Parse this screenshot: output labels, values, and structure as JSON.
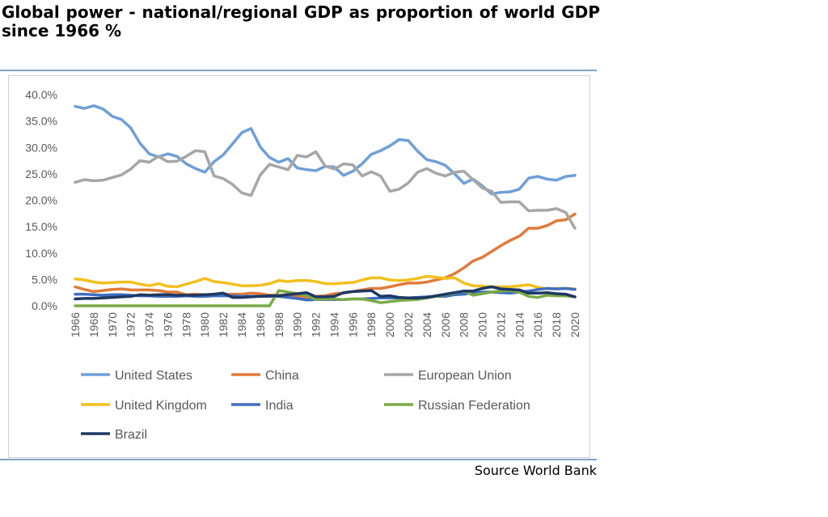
{
  "page": {
    "title": "Global power - national/regional GDP as proportion of world GDP since 1966 %",
    "source": "Source World Bank"
  },
  "chart_data": {
    "type": "line",
    "x": [
      1966,
      1967,
      1968,
      1969,
      1970,
      1971,
      1972,
      1973,
      1974,
      1975,
      1976,
      1977,
      1978,
      1979,
      1980,
      1981,
      1982,
      1983,
      1984,
      1985,
      1986,
      1987,
      1988,
      1989,
      1990,
      1991,
      1992,
      1993,
      1994,
      1995,
      1996,
      1997,
      1998,
      1999,
      2000,
      2001,
      2002,
      2003,
      2004,
      2005,
      2006,
      2007,
      2008,
      2009,
      2010,
      2011,
      2012,
      2013,
      2014,
      2015,
      2016,
      2017,
      2018,
      2019,
      2020
    ],
    "x_tick_labels": [
      "1966",
      "1968",
      "1970",
      "1972",
      "1974",
      "1976",
      "1978",
      "1980",
      "1982",
      "1984",
      "1986",
      "1988",
      "1990",
      "1992",
      "1994",
      "1996",
      "1998",
      "2000",
      "2002",
      "2004",
      "2006",
      "2008",
      "2010",
      "2012",
      "2014",
      "2016",
      "2018",
      "2020"
    ],
    "y_tick_labels": [
      "0.0%",
      "5.0%",
      "10.0%",
      "15.0%",
      "20.0%",
      "25.0%",
      "30.0%",
      "35.0%",
      "40.0%"
    ],
    "ylim": [
      0,
      40
    ],
    "grid": false,
    "legend_position": "bottom",
    "series": [
      {
        "name": "United States",
        "color": "#6f9fd8",
        "values": [
          37.8,
          37.4,
          37.9,
          37.3,
          35.9,
          35.3,
          33.7,
          30.8,
          28.8,
          28.2,
          28.8,
          28.3,
          26.9,
          26.0,
          25.3,
          27.3,
          28.6,
          30.7,
          32.8,
          33.6,
          30.1,
          28.1,
          27.2,
          27.9,
          26.1,
          25.8,
          25.6,
          26.4,
          26.3,
          24.7,
          25.5,
          26.9,
          28.7,
          29.4,
          30.3,
          31.5,
          31.3,
          29.3,
          27.7,
          27.3,
          26.6,
          25.0,
          23.2,
          24.0,
          22.7,
          21.2,
          21.5,
          21.6,
          22.1,
          24.2,
          24.5,
          24.0,
          23.8,
          24.5,
          24.7
        ]
      },
      {
        "name": "China",
        "color": "#e07b39",
        "values": [
          3.6,
          3.1,
          2.7,
          2.9,
          3.1,
          3.2,
          3.0,
          3.0,
          3.0,
          2.9,
          2.6,
          2.6,
          2.1,
          2.2,
          2.1,
          2.1,
          2.2,
          2.2,
          2.2,
          2.4,
          2.3,
          2.0,
          2.0,
          2.1,
          1.9,
          1.6,
          1.8,
          1.9,
          2.3,
          2.4,
          2.7,
          3.0,
          3.3,
          3.3,
          3.6,
          4.0,
          4.3,
          4.3,
          4.5,
          4.9,
          5.3,
          6.1,
          7.2,
          8.5,
          9.2,
          10.3,
          11.4,
          12.4,
          13.2,
          14.7,
          14.7,
          15.2,
          16.1,
          16.3,
          17.4
        ]
      },
      {
        "name": "European Union",
        "color": "#a6a6a6",
        "values": [
          23.4,
          23.9,
          23.7,
          23.8,
          24.3,
          24.8,
          25.9,
          27.5,
          27.2,
          28.3,
          27.3,
          27.4,
          28.3,
          29.4,
          29.2,
          24.6,
          24.1,
          23.0,
          21.4,
          20.9,
          24.8,
          26.8,
          26.3,
          25.8,
          28.5,
          28.2,
          29.2,
          26.5,
          25.9,
          26.9,
          26.7,
          24.6,
          25.4,
          24.6,
          21.7,
          22.1,
          23.3,
          25.3,
          26.0,
          25.1,
          24.6,
          25.3,
          25.5,
          23.9,
          22.3,
          21.7,
          19.6,
          19.7,
          19.7,
          18.0,
          18.1,
          18.1,
          18.4,
          17.7,
          14.7
        ]
      },
      {
        "name": "United Kingdom",
        "color": "#f2c01d",
        "values": [
          5.1,
          4.9,
          4.5,
          4.3,
          4.4,
          4.5,
          4.5,
          4.1,
          3.8,
          4.2,
          3.7,
          3.6,
          4.1,
          4.6,
          5.2,
          4.6,
          4.4,
          4.1,
          3.8,
          3.8,
          3.9,
          4.2,
          4.8,
          4.6,
          4.8,
          4.8,
          4.6,
          4.2,
          4.2,
          4.3,
          4.4,
          4.9,
          5.3,
          5.3,
          4.9,
          4.8,
          4.9,
          5.2,
          5.6,
          5.4,
          5.2,
          5.3,
          4.3,
          3.8,
          3.7,
          3.6,
          3.6,
          3.6,
          3.8,
          4.0,
          3.5,
          3.2,
          3.3,
          3.3,
          3.2
        ]
      },
      {
        "name": "India",
        "color": "#3f6fbf",
        "values": [
          2.2,
          2.2,
          2.1,
          2.0,
          2.1,
          2.1,
          2.0,
          1.9,
          1.9,
          1.8,
          1.8,
          1.8,
          1.9,
          1.8,
          1.8,
          1.9,
          1.9,
          1.9,
          1.8,
          1.8,
          1.8,
          1.8,
          1.8,
          1.6,
          1.4,
          1.1,
          1.2,
          1.2,
          1.2,
          1.2,
          1.3,
          1.3,
          1.4,
          1.5,
          1.5,
          1.5,
          1.5,
          1.6,
          1.7,
          1.8,
          1.8,
          2.1,
          2.2,
          2.5,
          2.6,
          2.6,
          2.5,
          2.4,
          2.6,
          2.8,
          3.1,
          3.3,
          3.2,
          3.3,
          3.1
        ]
      },
      {
        "name": "Russian Federation",
        "color": "#7aab48",
        "values": [
          0,
          0,
          0,
          0,
          0,
          0,
          0,
          0,
          0,
          0,
          0,
          0,
          0,
          0,
          0,
          0,
          0,
          0,
          0,
          0,
          0,
          0,
          2.9,
          2.6,
          2.3,
          2.0,
          1.2,
          1.3,
          1.3,
          1.2,
          1.3,
          1.3,
          1.0,
          0.6,
          0.8,
          1.0,
          1.1,
          1.2,
          1.5,
          1.8,
          2.1,
          2.4,
          2.8,
          2.0,
          2.3,
          2.6,
          2.8,
          2.9,
          2.6,
          1.8,
          1.6,
          2.0,
          1.9,
          1.9,
          1.7
        ]
      },
      {
        "name": "Brazil",
        "color": "#1f3864",
        "values": [
          1.3,
          1.4,
          1.4,
          1.5,
          1.6,
          1.7,
          1.8,
          2.1,
          2.0,
          2.1,
          2.1,
          2.0,
          2.0,
          2.0,
          2.1,
          2.2,
          2.4,
          1.6,
          1.6,
          1.7,
          1.8,
          1.9,
          1.9,
          2.1,
          2.3,
          2.5,
          1.7,
          1.7,
          1.8,
          2.5,
          2.7,
          2.8,
          2.9,
          1.8,
          1.9,
          1.6,
          1.5,
          1.5,
          1.6,
          1.9,
          2.2,
          2.5,
          2.8,
          2.8,
          3.3,
          3.6,
          3.2,
          3.1,
          3.0,
          2.4,
          2.4,
          2.5,
          2.3,
          2.2,
          1.7
        ]
      }
    ]
  }
}
